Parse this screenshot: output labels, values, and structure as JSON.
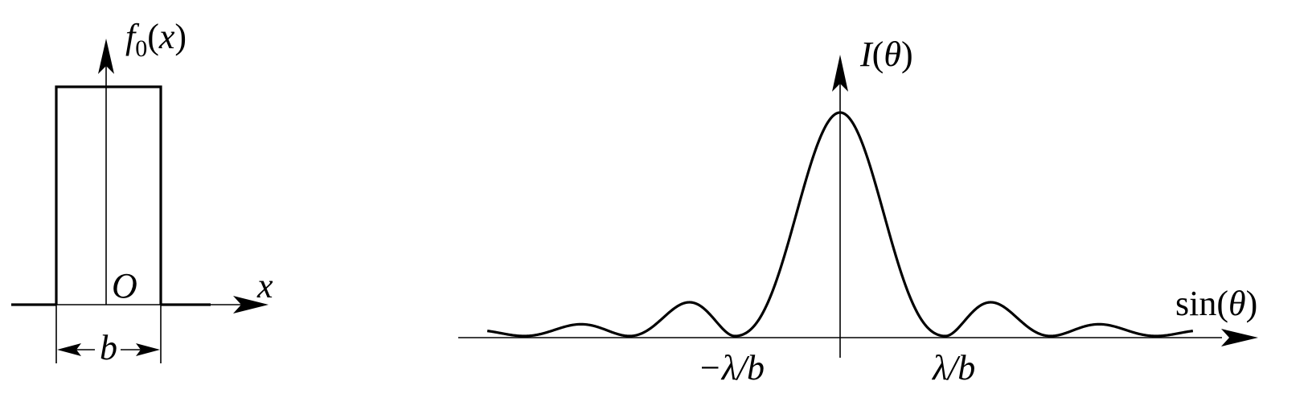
{
  "left_panel": {
    "y_label_f": "f",
    "y_label_sub": "0",
    "y_label_open": "(",
    "y_label_var": "x",
    "y_label_close": ")",
    "origin_label": "O",
    "x_label": "x",
    "width_label": "b"
  },
  "right_panel": {
    "y_label_func": "I",
    "y_label_open": "(",
    "y_label_var": "θ",
    "y_label_close": ")",
    "x_label_func": "sin",
    "x_label_open": "(",
    "x_label_var": "θ",
    "x_label_close": ")",
    "tick_neg_label": "−λ/b",
    "tick_pos_label": "λ/b",
    "curve": "sinc-squared",
    "zeros_shown": [
      -3,
      -2,
      -1,
      1,
      2,
      3
    ]
  },
  "colors": {
    "ink": "#000000",
    "background": "#ffffff"
  }
}
